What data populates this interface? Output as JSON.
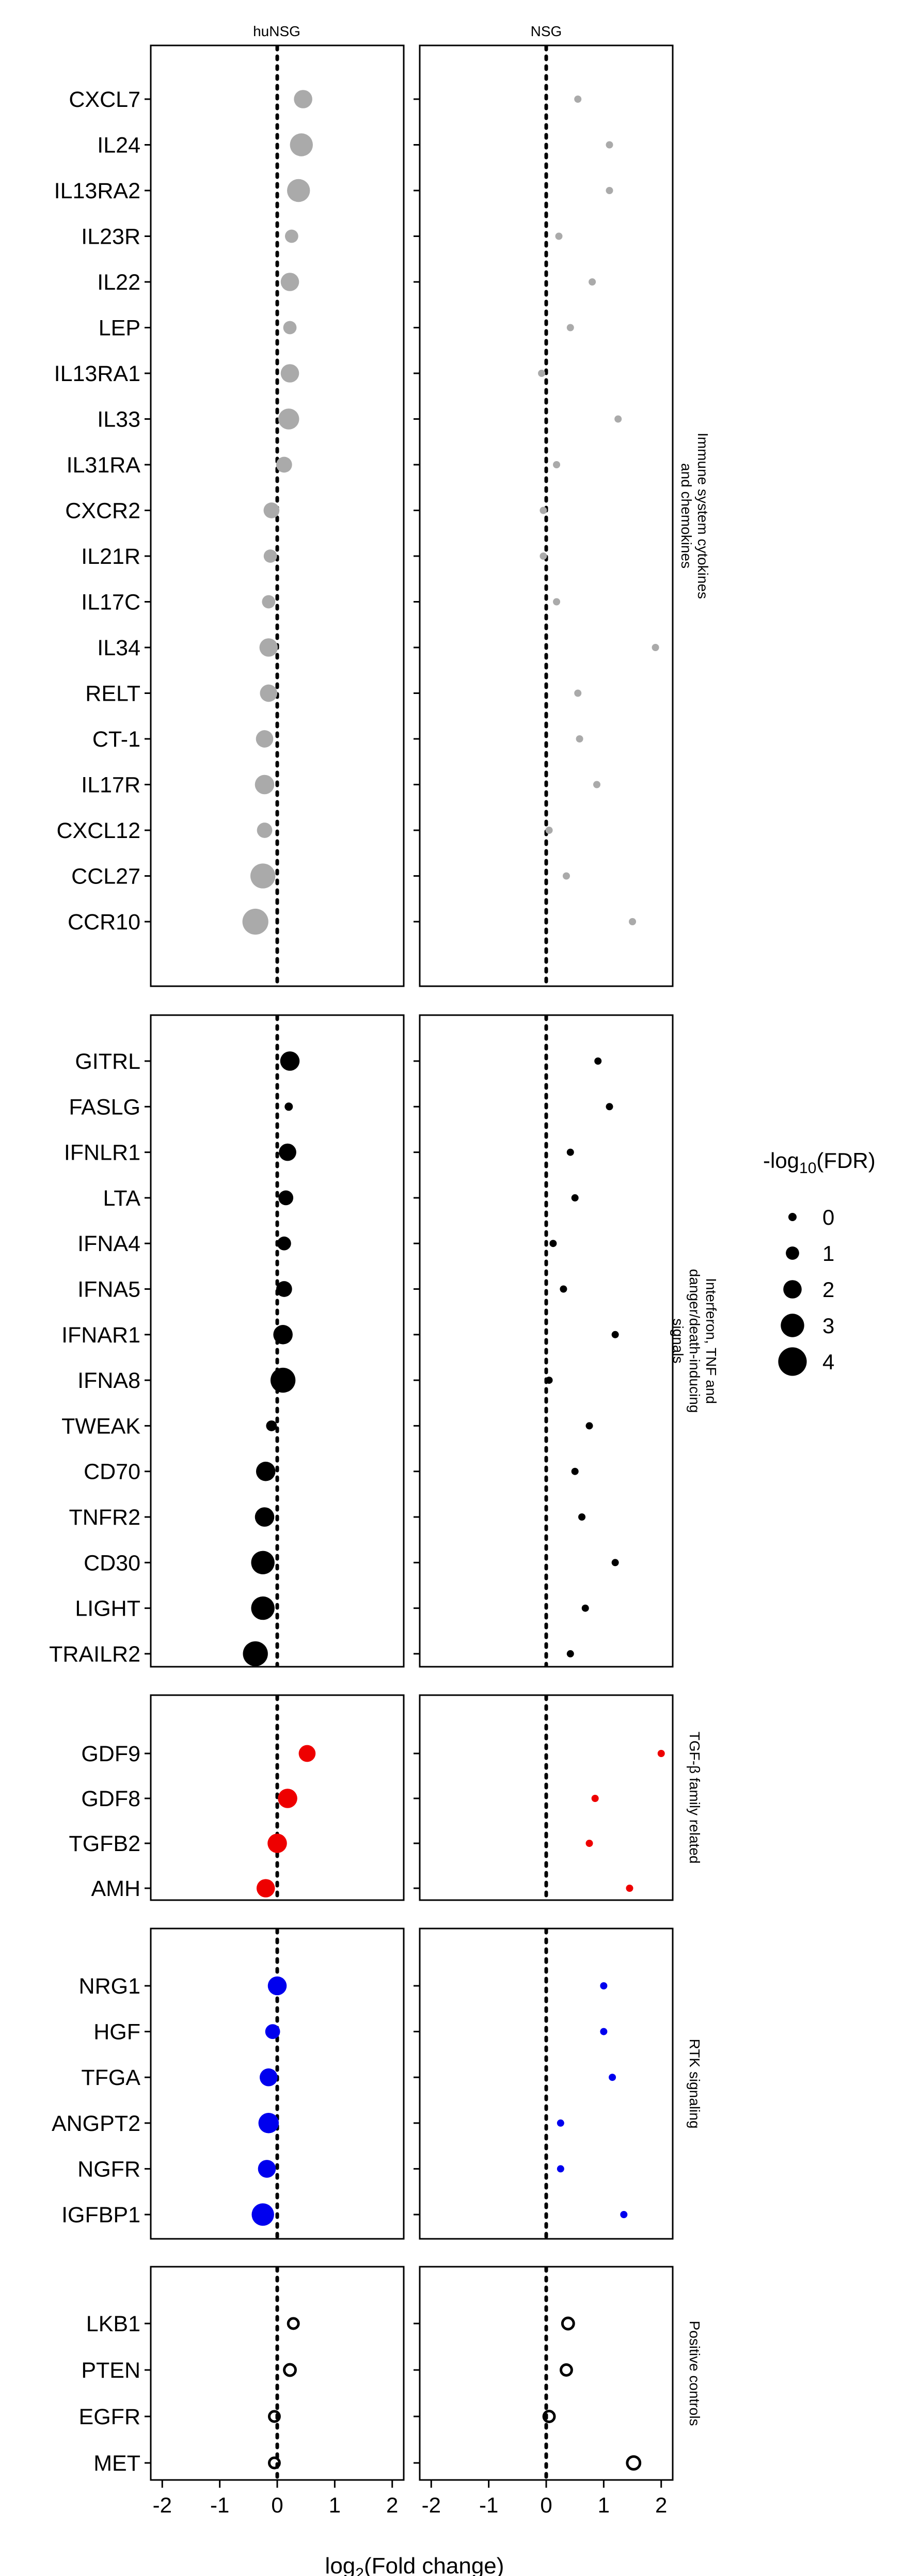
{
  "chart_data": {
    "type": "scatter",
    "subtype": "dot-plot",
    "columns": [
      "huNSG",
      "NSG"
    ],
    "xlabel_pre": "log",
    "xlabel_sub": "2",
    "xlabel_post": "(Fold change)",
    "xlim": [
      -2.2,
      2.2
    ],
    "xticks": [
      -2,
      -1,
      0,
      1,
      2
    ],
    "reference_line_x": 0,
    "legend": {
      "title_pre": "-log",
      "title_sub": "10",
      "title_post": "(FDR)",
      "levels": [
        0,
        1,
        2,
        3,
        4
      ],
      "position": "right"
    },
    "groups": [
      {
        "name_lines": [
          "Immune system cytokines",
          "and chemokines"
        ],
        "color": "#aaaaaa",
        "fill": true,
        "rows": [
          {
            "label": "CXCL7",
            "huNSG": {
              "x": 0.45,
              "fdr": 2.0
            },
            "NSG": {
              "x": 0.55,
              "fdr": 0.0
            }
          },
          {
            "label": "IL24",
            "huNSG": {
              "x": 0.42,
              "fdr": 2.9
            },
            "NSG": {
              "x": 1.1,
              "fdr": 0.0
            }
          },
          {
            "label": "IL13RA2",
            "huNSG": {
              "x": 0.37,
              "fdr": 2.9
            },
            "NSG": {
              "x": 1.1,
              "fdr": 0.0
            }
          },
          {
            "label": "IL23R",
            "huNSG": {
              "x": 0.25,
              "fdr": 1.0
            },
            "NSG": {
              "x": 0.22,
              "fdr": 0.0
            }
          },
          {
            "label": "IL22",
            "huNSG": {
              "x": 0.22,
              "fdr": 2.0
            },
            "NSG": {
              "x": 0.8,
              "fdr": 0.0
            }
          },
          {
            "label": "LEP",
            "huNSG": {
              "x": 0.22,
              "fdr": 1.0
            },
            "NSG": {
              "x": 0.42,
              "fdr": 0.0
            }
          },
          {
            "label": "IL13RA1",
            "huNSG": {
              "x": 0.22,
              "fdr": 2.0
            },
            "NSG": {
              "x": -0.08,
              "fdr": 0.0
            }
          },
          {
            "label": "IL33",
            "huNSG": {
              "x": 0.2,
              "fdr": 2.5
            },
            "NSG": {
              "x": 1.25,
              "fdr": 0.0
            }
          },
          {
            "label": "IL31RA",
            "huNSG": {
              "x": 0.12,
              "fdr": 1.5
            },
            "NSG": {
              "x": 0.18,
              "fdr": 0.0
            }
          },
          {
            "label": "CXCR2",
            "huNSG": {
              "x": -0.1,
              "fdr": 1.5
            },
            "NSG": {
              "x": -0.05,
              "fdr": 0.0
            }
          },
          {
            "label": "IL21R",
            "huNSG": {
              "x": -0.12,
              "fdr": 1.0
            },
            "NSG": {
              "x": -0.05,
              "fdr": 0.0
            }
          },
          {
            "label": "IL17C",
            "huNSG": {
              "x": -0.15,
              "fdr": 1.0
            },
            "NSG": {
              "x": 0.18,
              "fdr": 0.0
            }
          },
          {
            "label": "IL34",
            "huNSG": {
              "x": -0.15,
              "fdr": 2.0
            },
            "NSG": {
              "x": 1.9,
              "fdr": 0.0
            }
          },
          {
            "label": "RELT",
            "huNSG": {
              "x": -0.15,
              "fdr": 1.8
            },
            "NSG": {
              "x": 0.55,
              "fdr": 0.0
            }
          },
          {
            "label": "CT-1",
            "huNSG": {
              "x": -0.22,
              "fdr": 1.8
            },
            "NSG": {
              "x": 0.58,
              "fdr": 0.0
            }
          },
          {
            "label": "IL17R",
            "huNSG": {
              "x": -0.22,
              "fdr": 2.2
            },
            "NSG": {
              "x": 0.88,
              "fdr": 0.0
            }
          },
          {
            "label": "CXCL12",
            "huNSG": {
              "x": -0.22,
              "fdr": 1.4
            },
            "NSG": {
              "x": 0.05,
              "fdr": 0.0
            }
          },
          {
            "label": "CCL27",
            "huNSG": {
              "x": -0.25,
              "fdr": 3.3
            },
            "NSG": {
              "x": 0.35,
              "fdr": 0.0
            }
          },
          {
            "label": "CCR10",
            "huNSG": {
              "x": -0.38,
              "fdr": 3.5
            },
            "NSG": {
              "x": 1.5,
              "fdr": 0.0
            }
          }
        ]
      },
      {
        "name_lines": [
          "Interferon, TNF and",
          "danger/death-inducing",
          "signals"
        ],
        "color": "#000000",
        "fill": true,
        "rows": [
          {
            "label": "GITRL",
            "huNSG": {
              "x": 0.22,
              "fdr": 2.2
            },
            "NSG": {
              "x": 0.9,
              "fdr": 0.0
            }
          },
          {
            "label": "FASLG",
            "huNSG": {
              "x": 0.2,
              "fdr": 0.0
            },
            "NSG": {
              "x": 1.1,
              "fdr": 0.0
            }
          },
          {
            "label": "IFNLR1",
            "huNSG": {
              "x": 0.18,
              "fdr": 1.8
            },
            "NSG": {
              "x": 0.42,
              "fdr": 0.0
            }
          },
          {
            "label": "LTA",
            "huNSG": {
              "x": 0.15,
              "fdr": 1.3
            },
            "NSG": {
              "x": 0.5,
              "fdr": 0.0
            }
          },
          {
            "label": "IFNA4",
            "huNSG": {
              "x": 0.12,
              "fdr": 1.1
            },
            "NSG": {
              "x": 0.12,
              "fdr": 0.0
            }
          },
          {
            "label": "IFNA5",
            "huNSG": {
              "x": 0.12,
              "fdr": 1.5
            },
            "NSG": {
              "x": 0.3,
              "fdr": 0.0
            }
          },
          {
            "label": "IFNAR1",
            "huNSG": {
              "x": 0.1,
              "fdr": 2.2
            },
            "NSG": {
              "x": 1.2,
              "fdr": 0.0
            }
          },
          {
            "label": "IFNA8",
            "huNSG": {
              "x": 0.1,
              "fdr": 3.3
            },
            "NSG": {
              "x": 0.05,
              "fdr": 0.0
            }
          },
          {
            "label": "TWEAK",
            "huNSG": {
              "x": -0.1,
              "fdr": 0.5
            },
            "NSG": {
              "x": 0.75,
              "fdr": 0.0
            }
          },
          {
            "label": "CD70",
            "huNSG": {
              "x": -0.2,
              "fdr": 2.2
            },
            "NSG": {
              "x": 0.5,
              "fdr": 0.0
            }
          },
          {
            "label": "TNFR2",
            "huNSG": {
              "x": -0.22,
              "fdr": 2.2
            },
            "NSG": {
              "x": 0.62,
              "fdr": 0.0
            }
          },
          {
            "label": "CD30",
            "huNSG": {
              "x": -0.25,
              "fdr": 3.0
            },
            "NSG": {
              "x": 1.2,
              "fdr": 0.0
            }
          },
          {
            "label": "LIGHT",
            "huNSG": {
              "x": -0.25,
              "fdr": 3.0
            },
            "NSG": {
              "x": 0.68,
              "fdr": 0.0
            }
          },
          {
            "label": "TRAILR2",
            "huNSG": {
              "x": -0.38,
              "fdr": 3.3
            },
            "NSG": {
              "x": 0.42,
              "fdr": 0.0
            }
          }
        ]
      },
      {
        "name_lines": [
          "TGF-β family related"
        ],
        "color": "#ee0000",
        "fill": true,
        "rows": [
          {
            "label": "GDF9",
            "huNSG": {
              "x": 0.52,
              "fdr": 1.7
            },
            "NSG": {
              "x": 2.0,
              "fdr": 0.0
            }
          },
          {
            "label": "GDF8",
            "huNSG": {
              "x": 0.18,
              "fdr": 2.2
            },
            "NSG": {
              "x": 0.85,
              "fdr": 0.0
            }
          },
          {
            "label": "TGFB2",
            "huNSG": {
              "x": 0.0,
              "fdr": 2.2
            },
            "NSG": {
              "x": 0.75,
              "fdr": 0.0
            }
          },
          {
            "label": "AMH",
            "huNSG": {
              "x": -0.2,
              "fdr": 2.0
            },
            "NSG": {
              "x": 1.45,
              "fdr": 0.0
            }
          }
        ]
      },
      {
        "name_lines": [
          "RTK signaling"
        ],
        "color": "#0000ee",
        "fill": true,
        "rows": [
          {
            "label": "NRG1",
            "huNSG": {
              "x": 0.0,
              "fdr": 2.1
            },
            "NSG": {
              "x": 1.0,
              "fdr": 0.0
            }
          },
          {
            "label": "HGF",
            "huNSG": {
              "x": -0.08,
              "fdr": 1.3
            },
            "NSG": {
              "x": 1.0,
              "fdr": 0.0
            }
          },
          {
            "label": "TFGA",
            "huNSG": {
              "x": -0.15,
              "fdr": 1.9
            },
            "NSG": {
              "x": 1.15,
              "fdr": 0.0
            }
          },
          {
            "label": "ANGPT2",
            "huNSG": {
              "x": -0.15,
              "fdr": 2.4
            },
            "NSG": {
              "x": 0.25,
              "fdr": 0.0
            }
          },
          {
            "label": "NGFR",
            "huNSG": {
              "x": -0.18,
              "fdr": 1.9
            },
            "NSG": {
              "x": 0.25,
              "fdr": 0.0
            }
          },
          {
            "label": "IGFBP1",
            "huNSG": {
              "x": -0.25,
              "fdr": 2.8
            },
            "NSG": {
              "x": 1.35,
              "fdr": 0.0
            }
          }
        ]
      },
      {
        "name_lines": [
          "Positive controls"
        ],
        "color": "#000000",
        "fill": false,
        "rows": [
          {
            "label": "LKB1",
            "huNSG": {
              "x": 0.28,
              "fdr": 0.4
            },
            "NSG": {
              "x": 0.38,
              "fdr": 0.6
            }
          },
          {
            "label": "PTEN",
            "huNSG": {
              "x": 0.22,
              "fdr": 0.6
            },
            "NSG": {
              "x": 0.35,
              "fdr": 0.5
            }
          },
          {
            "label": "EGFR",
            "huNSG": {
              "x": -0.05,
              "fdr": 0.4
            },
            "NSG": {
              "x": 0.05,
              "fdr": 0.5
            }
          },
          {
            "label": "MET",
            "huNSG": {
              "x": -0.05,
              "fdr": 0.4
            },
            "NSG": {
              "x": 1.52,
              "fdr": 0.9
            }
          }
        ]
      }
    ]
  }
}
